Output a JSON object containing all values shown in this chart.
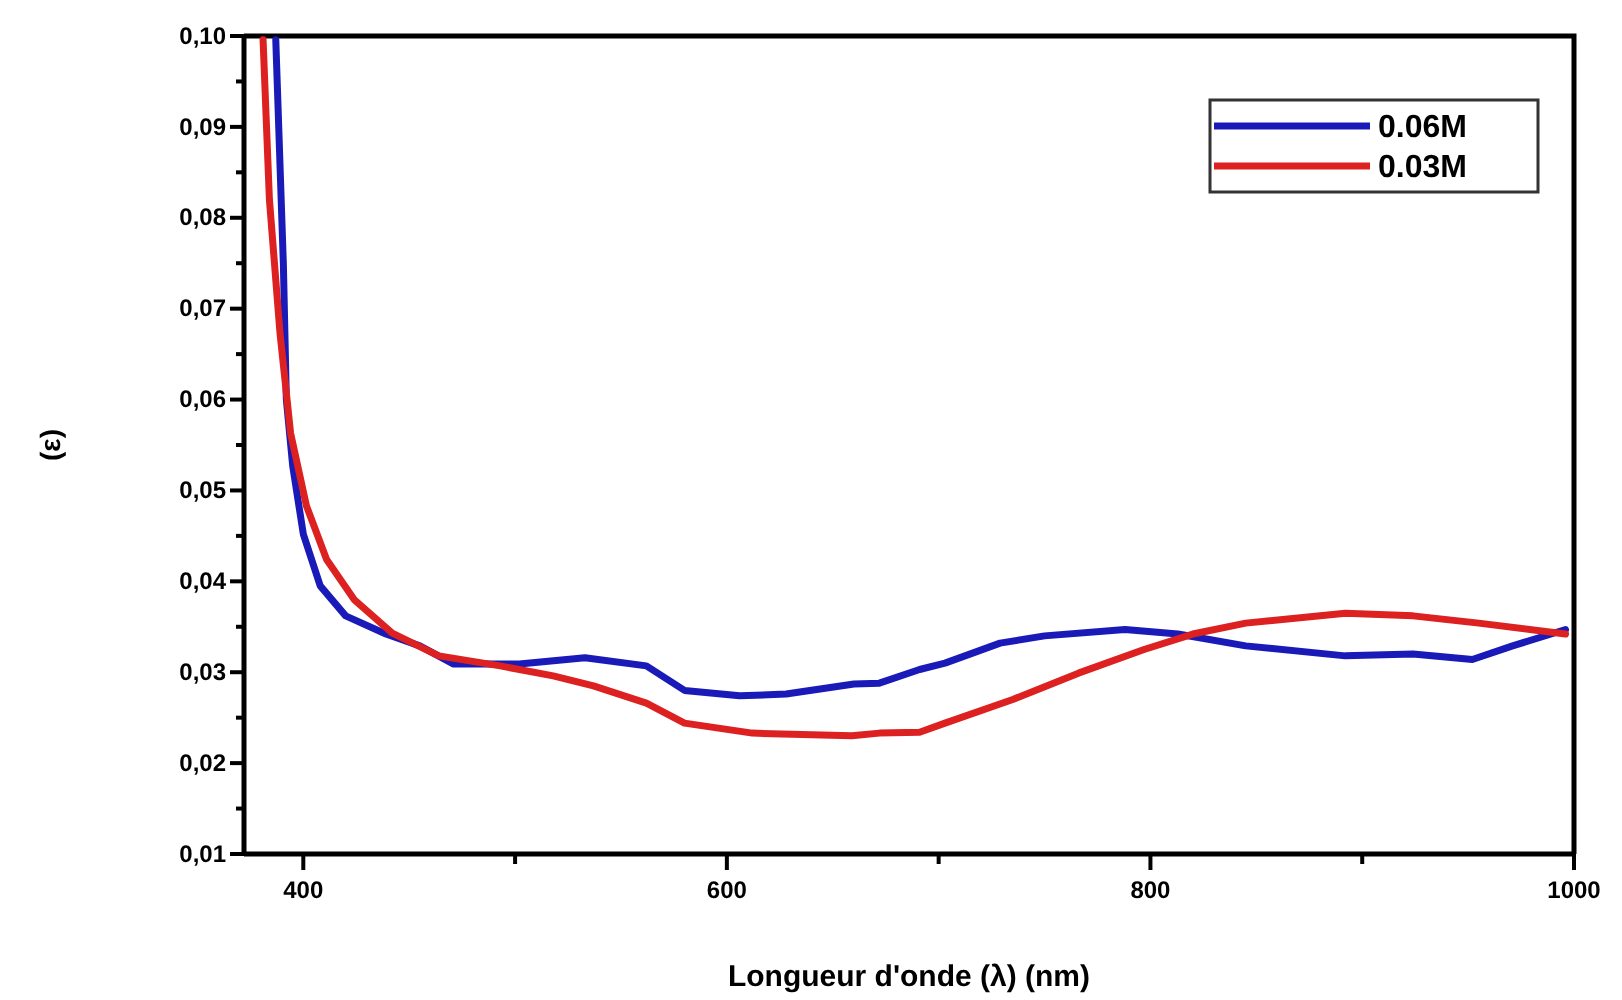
{
  "chart_data": {
    "type": "line",
    "xlabel": "Longueur d'onde (λ)  (nm)",
    "ylabel": "(ε)",
    "xlim": [
      372,
      1000
    ],
    "ylim": [
      0.01,
      0.1
    ],
    "xticks": [
      400,
      {
        "value": 500,
        "label": null
      },
      600,
      {
        "value": 700,
        "label": null
      },
      800,
      {
        "value": 900,
        "label": null
      },
      1000
    ],
    "yticks": [
      {
        "value": 0.01,
        "label": "0,01"
      },
      {
        "value": 0.015,
        "label": null
      },
      {
        "value": 0.02,
        "label": "0,02"
      },
      {
        "value": 0.025,
        "label": null
      },
      {
        "value": 0.03,
        "label": "0,03"
      },
      {
        "value": 0.035,
        "label": null
      },
      {
        "value": 0.04,
        "label": "0,04"
      },
      {
        "value": 0.045,
        "label": null
      },
      {
        "value": 0.05,
        "label": "0,05"
      },
      {
        "value": 0.055,
        "label": null
      },
      {
        "value": 0.06,
        "label": "0,06"
      },
      {
        "value": 0.065,
        "label": null
      },
      {
        "value": 0.07,
        "label": "0,07"
      },
      {
        "value": 0.075,
        "label": null
      },
      {
        "value": 0.08,
        "label": "0,08"
      },
      {
        "value": 0.085,
        "label": null
      },
      {
        "value": 0.09,
        "label": "0,09"
      },
      {
        "value": 0.095,
        "label": null
      },
      {
        "value": 0.1,
        "label": "0,10"
      }
    ],
    "grid": false,
    "legend": "top right",
    "marker": "none",
    "line_style": "solid",
    "series": [
      {
        "name": "0.06M",
        "color": "#1a1ab8",
        "x": [
          387,
          390.6,
          392,
          395,
          400,
          408,
          420,
          439,
          455,
          471,
          502,
          533,
          562,
          580,
          606,
          628,
          660,
          672,
          691,
          703,
          729,
          750,
          788,
          813,
          845,
          892,
          924,
          952,
          971,
          996
        ],
        "values": [
          0.0996,
          0.0748,
          0.06,
          0.0527,
          0.0452,
          0.0395,
          0.0362,
          0.0342,
          0.0329,
          0.0309,
          0.0309,
          0.0316,
          0.0307,
          0.028,
          0.0274,
          0.0276,
          0.0287,
          0.0288,
          0.0303,
          0.031,
          0.0332,
          0.034,
          0.0347,
          0.0342,
          0.0329,
          0.0318,
          0.032,
          0.0314,
          0.0329,
          0.0347
        ]
      },
      {
        "name": "0.03M",
        "color": "#dd2020",
        "x": [
          381,
          384,
          389,
          394,
          401.5,
          411,
          424,
          442,
          464,
          493,
          518,
          537,
          562,
          580,
          612,
          659,
          672,
          691,
          703,
          735,
          766,
          797,
          820,
          845,
          892,
          924,
          955,
          996
        ],
        "values": [
          0.0996,
          0.082,
          0.0673,
          0.0563,
          0.0483,
          0.0424,
          0.038,
          0.0343,
          0.0318,
          0.0307,
          0.0296,
          0.0285,
          0.0266,
          0.0244,
          0.0233,
          0.023,
          0.0233,
          0.0234,
          0.0244,
          0.027,
          0.0299,
          0.0325,
          0.0342,
          0.0354,
          0.0365,
          0.0362,
          0.0354,
          0.0342
        ]
      }
    ]
  }
}
